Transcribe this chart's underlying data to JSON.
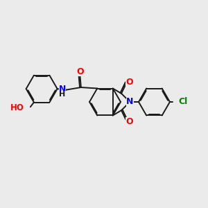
{
  "bg_color": "#ebebeb",
  "bond_color": "#1a1a1a",
  "N_color": "#0000ff",
  "O_color": "#ff0000",
  "Cl_color": "#008000",
  "lw": 1.4,
  "dbo": 0.055,
  "xlim": [
    0,
    10
  ],
  "ylim": [
    1,
    9
  ],
  "r6": 0.75,
  "r5h": 0.65
}
